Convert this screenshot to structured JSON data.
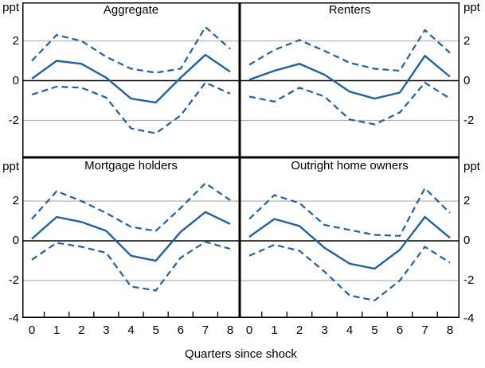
{
  "figure": {
    "xlabel": "Quarters since shock",
    "unit_label": "ppt",
    "x_ticks": [
      "0",
      "1",
      "2",
      "3",
      "4",
      "5",
      "6",
      "7",
      "8"
    ],
    "y_ticks_top": [
      "2",
      "0",
      "-2"
    ],
    "y_ticks_bottom": [
      "2",
      "0",
      "-2",
      "-4"
    ],
    "colors": {
      "line_blue": "#20619e",
      "gridline_gray": "#b3b3b3",
      "axis_black": "#000000",
      "background": "#ffffff"
    }
  },
  "chart_data": {
    "type": "line",
    "x": [
      0,
      1,
      2,
      3,
      4,
      5,
      6,
      7,
      8
    ],
    "xlabel": "Quarters since shock",
    "ylabel": "ppt",
    "ylim": [
      -4,
      4
    ],
    "gridlines_y": [
      -2,
      2
    ],
    "zero_line": true,
    "legend": "none",
    "panels": [
      {
        "title": "Aggregate",
        "position": "top-left",
        "series": [
          {
            "name": "point-estimate",
            "style": "solid",
            "values": [
              0.1,
              1.0,
              0.85,
              0.15,
              -0.9,
              -1.1,
              0.15,
              1.3,
              0.45
            ]
          },
          {
            "name": "upper-band",
            "style": "dashed",
            "values": [
              1.0,
              2.3,
              2.0,
              1.2,
              0.6,
              0.4,
              0.6,
              2.7,
              1.6
            ]
          },
          {
            "name": "lower-band",
            "style": "dashed",
            "values": [
              -0.7,
              -0.3,
              -0.35,
              -0.85,
              -2.4,
              -2.65,
              -1.75,
              -0.1,
              -0.65
            ]
          }
        ]
      },
      {
        "title": "Renters",
        "position": "top-right",
        "series": [
          {
            "name": "point-estimate",
            "style": "solid",
            "values": [
              0.05,
              0.5,
              0.85,
              0.3,
              -0.55,
              -0.9,
              -0.6,
              1.25,
              0.2
            ]
          },
          {
            "name": "upper-band",
            "style": "dashed",
            "values": [
              0.8,
              1.55,
              2.05,
              1.5,
              0.9,
              0.6,
              0.5,
              2.55,
              1.4
            ]
          },
          {
            "name": "lower-band",
            "style": "dashed",
            "values": [
              -0.8,
              -1.05,
              -0.35,
              -0.8,
              -1.95,
              -2.2,
              -1.6,
              -0.1,
              -0.9
            ]
          }
        ]
      },
      {
        "title": "Mortgage holders",
        "position": "bottom-left",
        "series": [
          {
            "name": "point-estimate",
            "style": "solid",
            "values": [
              0.1,
              1.2,
              0.95,
              0.5,
              -0.75,
              -1.0,
              0.45,
              1.45,
              0.85
            ]
          },
          {
            "name": "upper-band",
            "style": "dashed",
            "values": [
              1.1,
              2.5,
              2.0,
              1.4,
              0.7,
              0.5,
              1.65,
              2.9,
              2.05
            ]
          },
          {
            "name": "lower-band",
            "style": "dashed",
            "values": [
              -0.95,
              -0.1,
              -0.3,
              -0.6,
              -2.3,
              -2.5,
              -0.85,
              -0.05,
              -0.4
            ]
          }
        ]
      },
      {
        "title": "Outright home owners",
        "position": "bottom-right",
        "series": [
          {
            "name": "point-estimate",
            "style": "solid",
            "values": [
              0.2,
              1.1,
              0.75,
              -0.35,
              -1.15,
              -1.4,
              -0.45,
              1.2,
              0.15
            ]
          },
          {
            "name": "upper-band",
            "style": "dashed",
            "values": [
              1.1,
              2.3,
              1.9,
              0.8,
              0.55,
              0.3,
              0.25,
              2.65,
              1.4
            ]
          },
          {
            "name": "lower-band",
            "style": "dashed",
            "values": [
              -0.75,
              -0.2,
              -0.5,
              -1.55,
              -2.75,
              -3.0,
              -2.0,
              -0.3,
              -1.1
            ]
          }
        ]
      }
    ]
  }
}
